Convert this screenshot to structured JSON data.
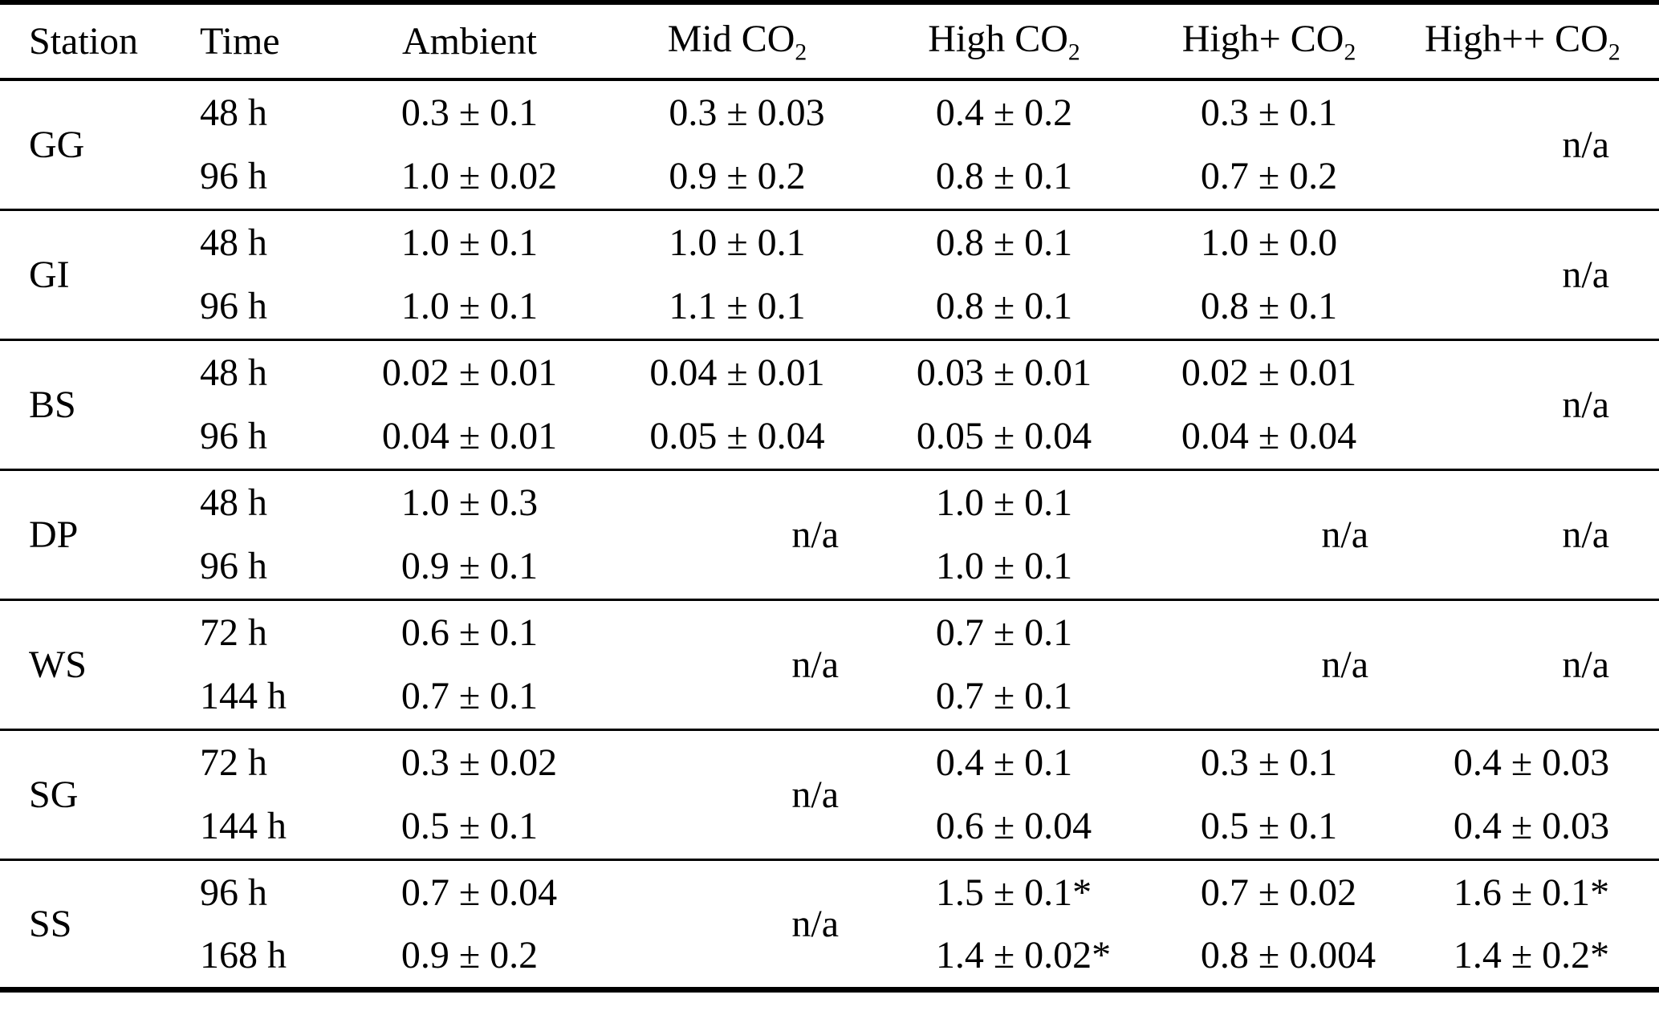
{
  "colors": {
    "background": "#ffffff",
    "text": "#000000",
    "rule": "#000000"
  },
  "table": {
    "columns": [
      {
        "key": "station",
        "label": "Station",
        "sub": ""
      },
      {
        "key": "time",
        "label": "Time",
        "sub": ""
      },
      {
        "key": "ambient",
        "label": "Ambient",
        "sub": ""
      },
      {
        "key": "mid",
        "label": "Mid CO",
        "sub": "2"
      },
      {
        "key": "high",
        "label": "High CO",
        "sub": "2"
      },
      {
        "key": "high_plus",
        "label": "High+ CO",
        "sub": "2"
      },
      {
        "key": "high_plus_plus",
        "label": "High++ CO",
        "sub": "2"
      }
    ],
    "value_column_keys": [
      "ambient",
      "mid",
      "high",
      "high_plus",
      "high_plus_plus"
    ],
    "plus_minus": "±",
    "na_label": "n/a",
    "groups": [
      {
        "station": "GG",
        "times": [
          "48 h",
          "96 h"
        ],
        "cells": {
          "ambient": [
            "0.3 ± 0.1",
            "1.0 ± 0.02"
          ],
          "mid": [
            "0.3 ± 0.03",
            "0.9 ± 0.2"
          ],
          "high": [
            "0.4 ± 0.2",
            "0.8 ± 0.1"
          ],
          "high_plus": [
            "0.3 ± 0.1",
            "0.7 ± 0.2"
          ],
          "high_plus_plus": "n/a"
        }
      },
      {
        "station": "GI",
        "times": [
          "48 h",
          "96 h"
        ],
        "cells": {
          "ambient": [
            "1.0 ± 0.1",
            "1.0 ± 0.1"
          ],
          "mid": [
            "1.0 ± 0.1",
            "1.1 ± 0.1"
          ],
          "high": [
            "0.8 ± 0.1",
            "0.8 ± 0.1"
          ],
          "high_plus": [
            "1.0 ± 0.0",
            "0.8 ± 0.1"
          ],
          "high_plus_plus": "n/a"
        }
      },
      {
        "station": "BS",
        "times": [
          "48 h",
          "96 h"
        ],
        "cells": {
          "ambient": [
            "0.02 ± 0.01",
            "0.04 ± 0.01"
          ],
          "mid": [
            "0.04 ± 0.01",
            "0.05 ± 0.04"
          ],
          "high": [
            "0.03 ± 0.01",
            "0.05 ± 0.04"
          ],
          "high_plus": [
            "0.02 ± 0.01",
            "0.04 ± 0.04"
          ],
          "high_plus_plus": "n/a"
        }
      },
      {
        "station": "DP",
        "times": [
          "48 h",
          "96 h"
        ],
        "cells": {
          "ambient": [
            "1.0 ± 0.3",
            "0.9 ± 0.1"
          ],
          "mid": "n/a",
          "high": [
            "1.0 ± 0.1",
            "1.0 ± 0.1"
          ],
          "high_plus": "n/a",
          "high_plus_plus": "n/a"
        }
      },
      {
        "station": "WS",
        "times": [
          "72 h",
          "144 h"
        ],
        "cells": {
          "ambient": [
            "0.6 ± 0.1",
            "0.7 ± 0.1"
          ],
          "mid": "n/a",
          "high": [
            "0.7 ± 0.1",
            "0.7 ± 0.1"
          ],
          "high_plus": "n/a",
          "high_plus_plus": "n/a"
        }
      },
      {
        "station": "SG",
        "times": [
          "72 h",
          "144 h"
        ],
        "cells": {
          "ambient": [
            "0.3 ± 0.02",
            "0.5 ± 0.1"
          ],
          "mid": "n/a",
          "high": [
            "0.4 ± 0.1",
            "0.6 ± 0.04"
          ],
          "high_plus": [
            "0.3 ± 0.1",
            "0.5 ± 0.1"
          ],
          "high_plus_plus": [
            "0.4 ± 0.03",
            "0.4 ± 0.03"
          ]
        }
      },
      {
        "station": "SS",
        "times": [
          "96 h",
          "168 h"
        ],
        "cells": {
          "ambient": [
            "0.7 ± 0.04",
            "0.9 ± 0.2"
          ],
          "mid": "n/a",
          "high": [
            "1.5 ± 0.1*",
            "1.4 ± 0.02*"
          ],
          "high_plus": [
            "0.7 ± 0.02",
            "0.8 ± 0.004"
          ],
          "high_plus_plus": [
            "1.6 ± 0.1*",
            "1.4 ± 0.2*"
          ]
        }
      }
    ]
  }
}
